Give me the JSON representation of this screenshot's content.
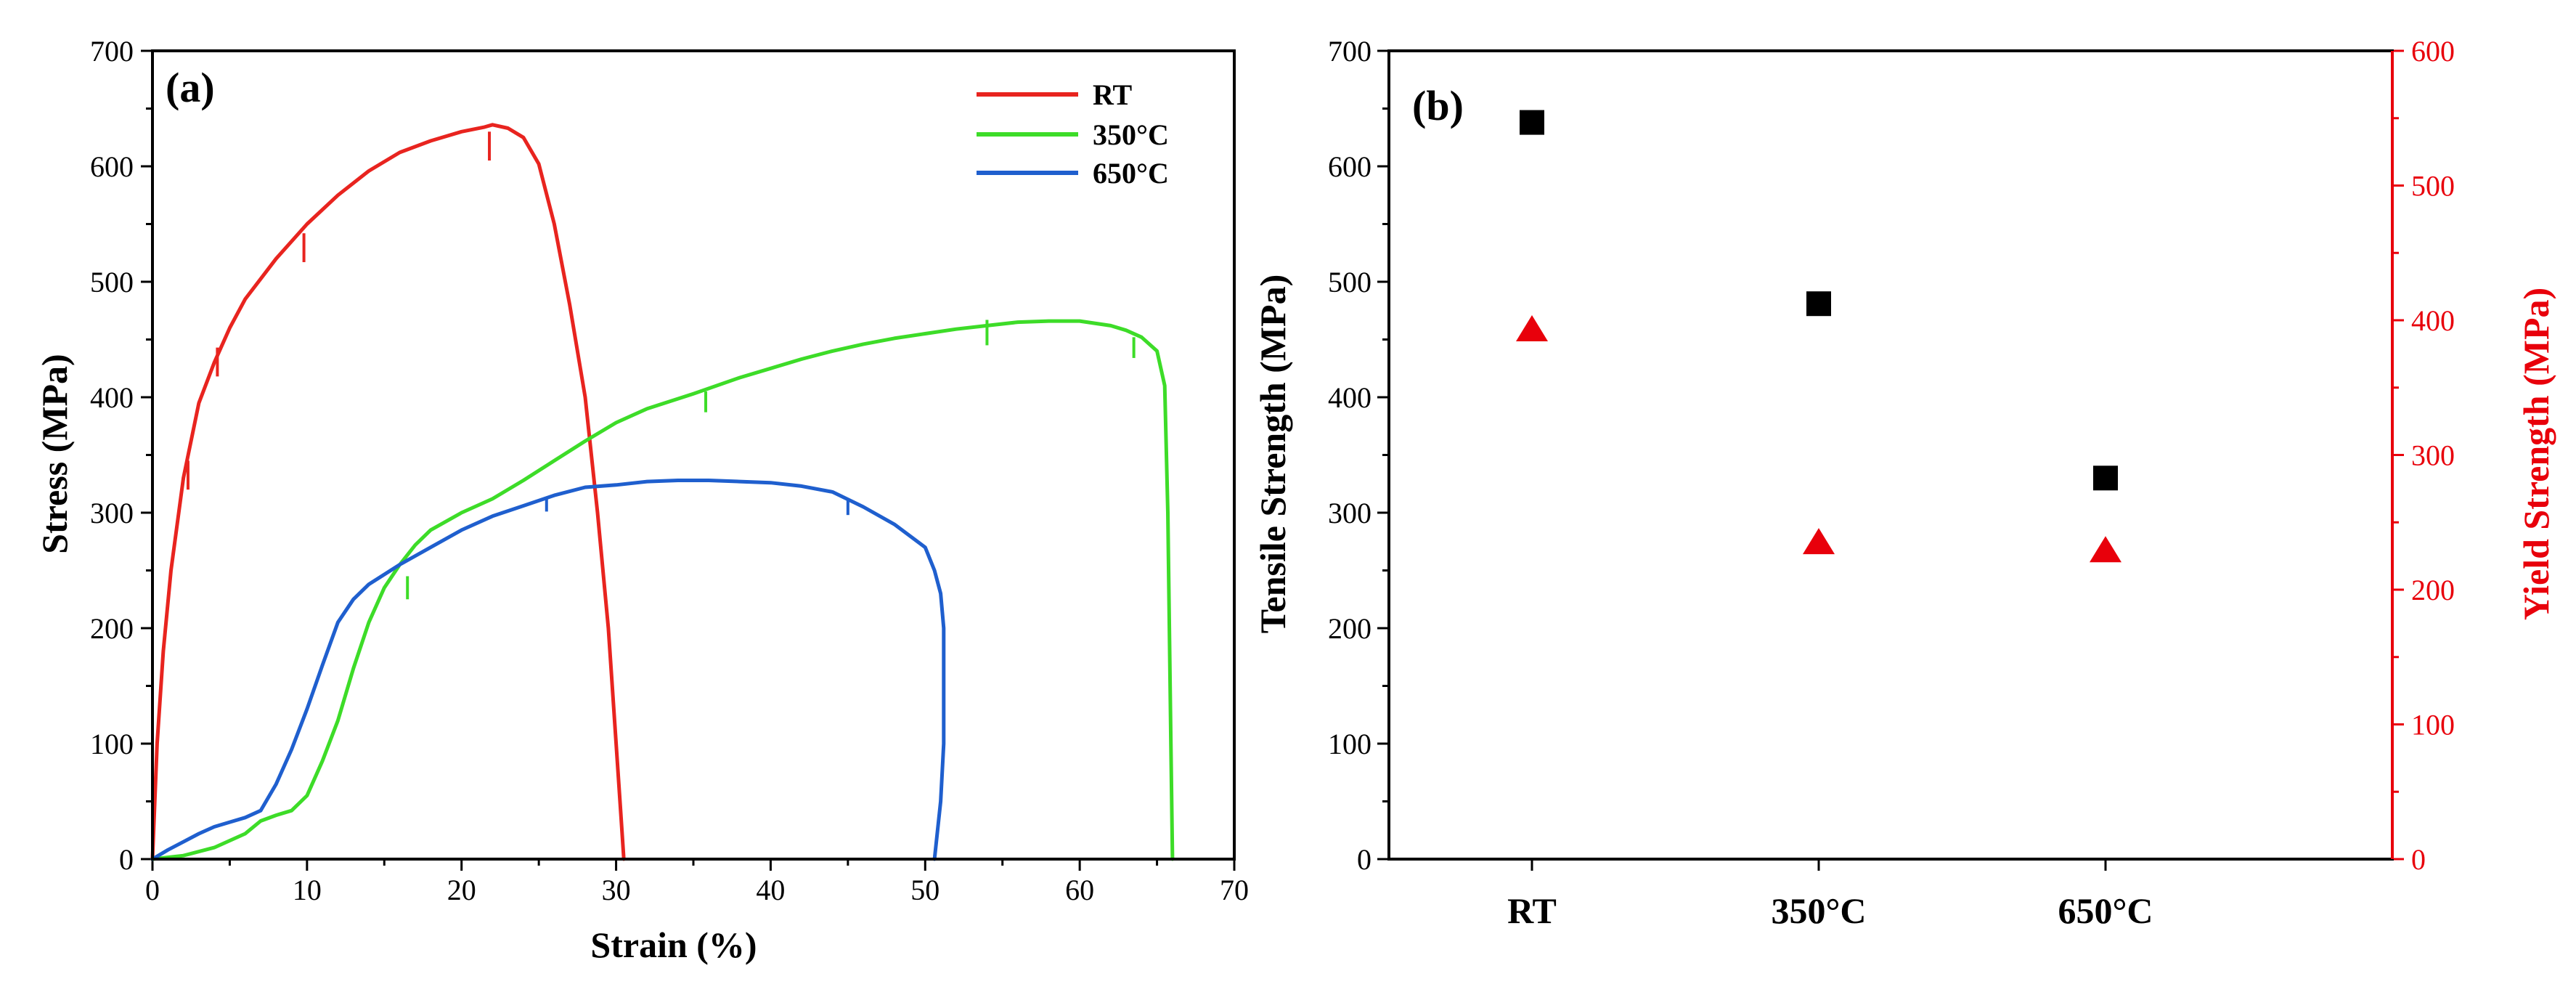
{
  "chart_data": [
    {
      "type": "line",
      "panel_label": "(a)",
      "xlabel": "Strain (%)",
      "ylabel": "Stress (MPa)",
      "xlim": [
        0,
        70
      ],
      "ylim": [
        0,
        700
      ],
      "xticks": [
        "0",
        "10",
        "20",
        "30",
        "40",
        "50",
        "60",
        "70"
      ],
      "yticks": [
        "0",
        "100",
        "200",
        "300",
        "400",
        "500",
        "600",
        "700"
      ],
      "legend_position": "top-right",
      "series": [
        {
          "name": "RT",
          "color": "#e8241f",
          "points": [
            [
              0,
              0
            ],
            [
              0.3,
              100
            ],
            [
              0.7,
              180
            ],
            [
              1.2,
              250
            ],
            [
              2,
              330
            ],
            [
              3,
              395
            ],
            [
              4,
              430
            ],
            [
              5,
              460
            ],
            [
              6,
              485
            ],
            [
              8,
              520
            ],
            [
              10,
              550
            ],
            [
              12,
              575
            ],
            [
              14,
              596
            ],
            [
              16,
              612
            ],
            [
              18,
              622
            ],
            [
              20,
              630
            ],
            [
              21.5,
              634
            ],
            [
              22,
              636
            ],
            [
              23,
              633
            ],
            [
              24,
              625
            ],
            [
              25,
              602
            ],
            [
              26,
              550
            ],
            [
              27,
              480
            ],
            [
              28,
              400
            ],
            [
              28.8,
              300
            ],
            [
              29.5,
              200
            ],
            [
              30,
              100
            ],
            [
              30.3,
              40
            ],
            [
              30.5,
              0
            ]
          ],
          "serrations": [
            [
              2.3,
              345,
              25
            ],
            [
              4.2,
              443,
              25
            ],
            [
              9.8,
              542,
              25
            ],
            [
              21.8,
              630,
              25
            ]
          ]
        },
        {
          "name": "350°C",
          "color": "#3ddc28",
          "points": [
            [
              0,
              0
            ],
            [
              2,
              3
            ],
            [
              4,
              10
            ],
            [
              6,
              22
            ],
            [
              7,
              33
            ],
            [
              8,
              38
            ],
            [
              9,
              42
            ],
            [
              10,
              55
            ],
            [
              11,
              85
            ],
            [
              12,
              120
            ],
            [
              13,
              165
            ],
            [
              14,
              205
            ],
            [
              15,
              235
            ],
            [
              16,
              255
            ],
            [
              17,
              272
            ],
            [
              18,
              285
            ],
            [
              20,
              300
            ],
            [
              22,
              312
            ],
            [
              24,
              328
            ],
            [
              26,
              345
            ],
            [
              28,
              362
            ],
            [
              30,
              378
            ],
            [
              32,
              390
            ],
            [
              35,
              403
            ],
            [
              38,
              417
            ],
            [
              40,
              425
            ],
            [
              42,
              433
            ],
            [
              44,
              440
            ],
            [
              46,
              446
            ],
            [
              48,
              451
            ],
            [
              50,
              455
            ],
            [
              52,
              459
            ],
            [
              54,
              462
            ],
            [
              56,
              465
            ],
            [
              58,
              466
            ],
            [
              60,
              466
            ],
            [
              62,
              462
            ],
            [
              63,
              458
            ],
            [
              64,
              452
            ],
            [
              65,
              440
            ],
            [
              65.5,
              410
            ],
            [
              65.7,
              300
            ],
            [
              65.8,
              200
            ],
            [
              65.9,
              100
            ],
            [
              66,
              0
            ]
          ],
          "serrations": [
            [
              16.5,
              245,
              20
            ],
            [
              35.8,
              405,
              18
            ],
            [
              54,
              467,
              22
            ],
            [
              63.5,
              452,
              18
            ]
          ]
        },
        {
          "name": "650°C",
          "color": "#1f5fce",
          "points": [
            [
              0,
              0
            ],
            [
              1,
              8
            ],
            [
              2,
              15
            ],
            [
              3,
              22
            ],
            [
              4,
              28
            ],
            [
              5,
              32
            ],
            [
              6,
              36
            ],
            [
              7,
              42
            ],
            [
              8,
              65
            ],
            [
              9,
              95
            ],
            [
              10,
              130
            ],
            [
              11,
              168
            ],
            [
              12,
              205
            ],
            [
              13,
              225
            ],
            [
              14,
              238
            ],
            [
              16,
              255
            ],
            [
              18,
              270
            ],
            [
              20,
              285
            ],
            [
              22,
              297
            ],
            [
              24,
              306
            ],
            [
              26,
              315
            ],
            [
              28,
              322
            ],
            [
              30,
              324
            ],
            [
              32,
              327
            ],
            [
              34,
              328
            ],
            [
              36,
              328
            ],
            [
              38,
              327
            ],
            [
              40,
              326
            ],
            [
              42,
              323
            ],
            [
              44,
              318
            ],
            [
              46,
              305
            ],
            [
              48,
              290
            ],
            [
              50,
              270
            ],
            [
              50.6,
              250
            ],
            [
              51,
              230
            ],
            [
              51.2,
              200
            ],
            [
              51.2,
              100
            ],
            [
              51,
              50
            ],
            [
              50.6,
              0
            ]
          ],
          "serrations": [
            [
              25.5,
              313,
              12
            ],
            [
              45,
              312,
              14
            ]
          ]
        }
      ]
    },
    {
      "type": "scatter",
      "panel_label": "(b)",
      "categories": [
        "RT",
        "350°C",
        "650°C"
      ],
      "ylabel": "Tensile Strength (MPa)",
      "y2label": "Yield Strength (MPa)",
      "ylim": [
        0,
        700
      ],
      "y2lim": [
        0,
        600
      ],
      "yticks": [
        "0",
        "100",
        "200",
        "300",
        "400",
        "500",
        "600",
        "700"
      ],
      "y2ticks": [
        "0",
        "100",
        "200",
        "300",
        "400",
        "500",
        "600"
      ],
      "series": [
        {
          "name": "Tensile Strength",
          "axis": "left",
          "marker": "square",
          "color": "#000000",
          "values": [
            638,
            481,
            330
          ]
        },
        {
          "name": "Yield Strength",
          "axis": "right",
          "marker": "triangle",
          "color": "#e8000b",
          "values": [
            393,
            235,
            229
          ]
        }
      ]
    }
  ]
}
